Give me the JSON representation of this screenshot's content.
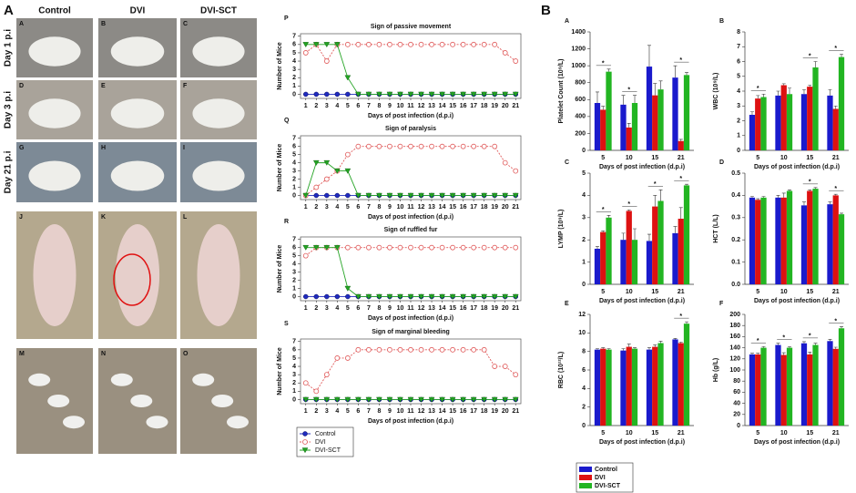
{
  "photo_panel": {
    "panel_label": "A",
    "columns": [
      "Control",
      "DVI",
      "DVI-SCT"
    ],
    "rows": [
      "Day 1 p.i",
      "Day 3 p.i",
      "Day 21 p.i"
    ],
    "letters": [
      "A",
      "B",
      "C",
      "D",
      "E",
      "F",
      "G",
      "H",
      "I",
      "J",
      "K",
      "L",
      "M",
      "N",
      "O"
    ]
  },
  "chart_data": [
    {
      "type": "line",
      "panel_label": "P",
      "title": "Sign of passive movement",
      "xlabel": "Days of post infection (d.p.i)",
      "ylabel": "Number of Mice",
      "x": [
        1,
        2,
        3,
        4,
        5,
        6,
        7,
        8,
        9,
        10,
        11,
        12,
        13,
        14,
        15,
        16,
        17,
        18,
        19,
        20,
        21
      ],
      "xlim": [
        0.5,
        21.5
      ],
      "xticks": [
        1,
        2,
        3,
        4,
        5,
        6,
        7,
        8,
        9,
        10,
        11,
        12,
        13,
        14,
        15,
        16,
        17,
        18,
        19,
        20,
        21
      ],
      "ylim": [
        -0.5,
        7.3
      ],
      "yticks": [
        0,
        1,
        2,
        3,
        4,
        5,
        6,
        7
      ],
      "series": [
        {
          "name": "Control",
          "color": "#1f2bbf",
          "marker": "circle",
          "dashed": false,
          "values": [
            0,
            0,
            0,
            0,
            0,
            0,
            0,
            0,
            0,
            0,
            0,
            0,
            0,
            0,
            0,
            0,
            0,
            0,
            0,
            0,
            0
          ]
        },
        {
          "name": "DVI",
          "color": "#e05a5a",
          "marker": "open-circle",
          "dashed": true,
          "values": [
            5,
            6,
            4,
            6,
            6,
            6,
            6,
            6,
            6,
            6,
            6,
            6,
            6,
            6,
            6,
            6,
            6,
            6,
            6,
            5,
            4
          ]
        },
        {
          "name": "DVI-SCT",
          "color": "#23a323",
          "marker": "triangle",
          "dashed": false,
          "values": [
            6,
            6,
            6,
            6,
            2,
            0,
            0,
            0,
            0,
            0,
            0,
            0,
            0,
            0,
            0,
            0,
            0,
            0,
            0,
            0,
            0
          ]
        }
      ]
    },
    {
      "type": "line",
      "panel_label": "Q",
      "title": "Sign of paralysis",
      "xlabel": "Days of post infection (d.p.i)",
      "ylabel": "Number of Mice",
      "x": [
        1,
        2,
        3,
        4,
        5,
        6,
        7,
        8,
        9,
        10,
        11,
        12,
        13,
        14,
        15,
        16,
        17,
        18,
        19,
        20,
        21
      ],
      "xlim": [
        0.5,
        21.5
      ],
      "xticks": [
        1,
        2,
        3,
        4,
        5,
        6,
        7,
        8,
        9,
        10,
        11,
        12,
        13,
        14,
        15,
        16,
        17,
        18,
        19,
        20,
        21
      ],
      "ylim": [
        -0.5,
        7.3
      ],
      "yticks": [
        0,
        1,
        2,
        3,
        4,
        5,
        6,
        7
      ],
      "series": [
        {
          "name": "Control",
          "color": "#1f2bbf",
          "marker": "circle",
          "dashed": false,
          "values": [
            0,
            0,
            0,
            0,
            0,
            0,
            0,
            0,
            0,
            0,
            0,
            0,
            0,
            0,
            0,
            0,
            0,
            0,
            0,
            0,
            0
          ]
        },
        {
          "name": "DVI",
          "color": "#e05a5a",
          "marker": "open-circle",
          "dashed": true,
          "values": [
            0,
            1,
            2,
            3,
            5,
            6,
            6,
            6,
            6,
            6,
            6,
            6,
            6,
            6,
            6,
            6,
            6,
            6,
            6,
            4,
            3
          ]
        },
        {
          "name": "DVI-SCT",
          "color": "#23a323",
          "marker": "triangle",
          "dashed": false,
          "values": [
            0,
            4,
            4,
            3,
            3,
            0,
            0,
            0,
            0,
            0,
            0,
            0,
            0,
            0,
            0,
            0,
            0,
            0,
            0,
            0,
            0
          ]
        }
      ]
    },
    {
      "type": "line",
      "panel_label": "R",
      "title": "Sign of ruffled fur",
      "xlabel": "Days of post infection (d.p.i)",
      "ylabel": "Number of Mice",
      "x": [
        1,
        2,
        3,
        4,
        5,
        6,
        7,
        8,
        9,
        10,
        11,
        12,
        13,
        14,
        15,
        16,
        17,
        18,
        19,
        20,
        21
      ],
      "xlim": [
        0.5,
        21.5
      ],
      "xticks": [
        1,
        2,
        3,
        4,
        5,
        6,
        7,
        8,
        9,
        10,
        11,
        12,
        13,
        14,
        15,
        16,
        17,
        18,
        19,
        20,
        21
      ],
      "ylim": [
        -0.5,
        7.3
      ],
      "yticks": [
        0,
        1,
        2,
        3,
        4,
        5,
        6,
        7
      ],
      "series": [
        {
          "name": "Control",
          "color": "#1f2bbf",
          "marker": "circle",
          "dashed": false,
          "values": [
            0,
            0,
            0,
            0,
            0,
            0,
            0,
            0,
            0,
            0,
            0,
            0,
            0,
            0,
            0,
            0,
            0,
            0,
            0,
            0,
            0
          ]
        },
        {
          "name": "DVI",
          "color": "#e05a5a",
          "marker": "open-circle",
          "dashed": true,
          "values": [
            5,
            6,
            6,
            6,
            6,
            6,
            6,
            6,
            6,
            6,
            6,
            6,
            6,
            6,
            6,
            6,
            6,
            6,
            6,
            6,
            6
          ]
        },
        {
          "name": "DVI-SCT",
          "color": "#23a323",
          "marker": "triangle",
          "dashed": false,
          "values": [
            6,
            6,
            6,
            6,
            1,
            0,
            0,
            0,
            0,
            0,
            0,
            0,
            0,
            0,
            0,
            0,
            0,
            0,
            0,
            0,
            0
          ]
        }
      ]
    },
    {
      "type": "line",
      "panel_label": "S",
      "title": "Sign of marginal bleeding",
      "xlabel": "Days of post infection (d.p.i)",
      "ylabel": "Number of Mice",
      "legend": "below",
      "x": [
        1,
        2,
        3,
        4,
        5,
        6,
        7,
        8,
        9,
        10,
        11,
        12,
        13,
        14,
        15,
        16,
        17,
        18,
        19,
        20,
        21
      ],
      "xlim": [
        0.5,
        21.5
      ],
      "xticks": [
        1,
        2,
        3,
        4,
        5,
        6,
        7,
        8,
        9,
        10,
        11,
        12,
        13,
        14,
        15,
        16,
        17,
        18,
        19,
        20,
        21
      ],
      "ylim": [
        -0.5,
        7.3
      ],
      "yticks": [
        0,
        1,
        2,
        3,
        4,
        5,
        6,
        7
      ],
      "series": [
        {
          "name": "Control",
          "color": "#1f2bbf",
          "marker": "circle",
          "dashed": false,
          "values": [
            0,
            0,
            0,
            0,
            0,
            0,
            0,
            0,
            0,
            0,
            0,
            0,
            0,
            0,
            0,
            0,
            0,
            0,
            0,
            0,
            0
          ]
        },
        {
          "name": "DVI",
          "color": "#e05a5a",
          "marker": "open-circle",
          "dashed": true,
          "values": [
            2,
            1,
            3,
            5,
            5,
            6,
            6,
            6,
            6,
            6,
            6,
            6,
            6,
            6,
            6,
            6,
            6,
            6,
            4,
            4,
            3
          ]
        },
        {
          "name": "DVI-SCT",
          "color": "#23a323",
          "marker": "triangle",
          "dashed": false,
          "values": [
            0,
            0,
            0,
            0,
            0,
            0,
            0,
            0,
            0,
            0,
            0,
            0,
            0,
            0,
            0,
            0,
            0,
            0,
            0,
            0,
            0
          ]
        }
      ]
    },
    {
      "type": "bar",
      "figure_label": "B",
      "panel_label": "A",
      "xlabel": "Days of post infection (d.p.i)",
      "ylabel": "Platelet Count (10⁹/L)",
      "categories": [
        "5",
        "10",
        "15",
        "21"
      ],
      "ylim": [
        0,
        1400
      ],
      "yticks": [
        0,
        200,
        400,
        600,
        800,
        1000,
        1200,
        1400
      ],
      "annotations": [
        {
          "text": "*",
          "category": "5"
        },
        {
          "text": "*",
          "category": "10"
        },
        {
          "text": "*",
          "category": "21"
        }
      ],
      "series": [
        {
          "name": "Control",
          "color": "#1a1acc",
          "values": [
            560,
            540,
            990,
            860
          ],
          "errors": [
            130,
            110,
            250,
            140
          ]
        },
        {
          "name": "DVI",
          "color": "#dd1111",
          "values": [
            480,
            270,
            650,
            110
          ],
          "errors": [
            40,
            50,
            140,
            20
          ]
        },
        {
          "name": "DVI-SCT",
          "color": "#22b522",
          "values": [
            930,
            560,
            720,
            890
          ],
          "errors": [
            30,
            90,
            100,
            30
          ]
        }
      ]
    },
    {
      "type": "bar",
      "panel_label": "B",
      "xlabel": "Days of post infection (d.p.i)",
      "ylabel": "WBC (10⁹/L)",
      "categories": [
        "5",
        "10",
        "15",
        "21"
      ],
      "ylim": [
        0,
        8
      ],
      "yticks": [
        0,
        1,
        2,
        3,
        4,
        5,
        6,
        7,
        8
      ],
      "annotations": [
        {
          "text": "*",
          "category": "5"
        },
        {
          "text": "*",
          "category": "15"
        },
        {
          "text": "*",
          "category": "21"
        }
      ],
      "series": [
        {
          "name": "Control",
          "color": "#1a1acc",
          "values": [
            2.4,
            3.7,
            3.8,
            3.7
          ],
          "errors": [
            0.2,
            0.3,
            0.3,
            0.4
          ]
        },
        {
          "name": "DVI",
          "color": "#dd1111",
          "values": [
            3.5,
            4.4,
            4.3,
            2.8
          ],
          "errors": [
            0.2,
            0.1,
            0.1,
            0.2
          ]
        },
        {
          "name": "DVI-SCT",
          "color": "#22b522",
          "values": [
            3.6,
            3.8,
            5.6,
            6.3
          ],
          "errors": [
            0.2,
            0.4,
            0.4,
            0.2
          ]
        }
      ]
    },
    {
      "type": "bar",
      "panel_label": "C",
      "xlabel": "Days of post infection (d.p.i)",
      "ylabel": "LYMP (10⁹/L)",
      "categories": [
        "5",
        "10",
        "15",
        "21"
      ],
      "ylim": [
        0,
        5
      ],
      "yticks": [
        0,
        1,
        2,
        3,
        4,
        5
      ],
      "annotations": [
        {
          "text": "*",
          "category": "5"
        },
        {
          "text": "*",
          "category": "10"
        },
        {
          "text": "*",
          "category": "15"
        },
        {
          "text": "*",
          "category": "21"
        }
      ],
      "series": [
        {
          "name": "Control",
          "color": "#1a1acc",
          "values": [
            1.6,
            2.0,
            1.95,
            2.3
          ],
          "errors": [
            0.1,
            0.3,
            0.3,
            0.3
          ]
        },
        {
          "name": "DVI",
          "color": "#dd1111",
          "values": [
            2.35,
            3.3,
            3.5,
            2.95
          ],
          "errors": [
            0.05,
            0.05,
            0.5,
            0.5
          ]
        },
        {
          "name": "DVI-SCT",
          "color": "#22b522",
          "values": [
            3.0,
            2.0,
            3.75,
            4.45
          ],
          "errors": [
            0.1,
            0.5,
            0.5,
            0.05
          ]
        }
      ]
    },
    {
      "type": "bar",
      "panel_label": "D",
      "xlabel": "Days of post infection (d.p.i)",
      "ylabel": "HCT (L/L)",
      "categories": [
        "5",
        "10",
        "15",
        "21"
      ],
      "ylim": [
        0,
        0.5
      ],
      "yticks": [
        {
          "value": 0,
          "label": "0.0"
        },
        0.1,
        0.2,
        0.3,
        0.4,
        0.5
      ],
      "annotations": [
        {
          "text": "*",
          "category": "15"
        },
        {
          "text": "*",
          "category": "21"
        }
      ],
      "series": [
        {
          "name": "Control",
          "color": "#1a1acc",
          "values": [
            0.39,
            0.39,
            0.355,
            0.36
          ],
          "errors": [
            0.005,
            0.01,
            0.015,
            0.01
          ]
        },
        {
          "name": "DVI",
          "color": "#dd1111",
          "values": [
            0.38,
            0.39,
            0.42,
            0.4
          ],
          "errors": [
            0.005,
            0.02,
            0.005,
            0.005
          ]
        },
        {
          "name": "DVI-SCT",
          "color": "#22b522",
          "values": [
            0.39,
            0.42,
            0.43,
            0.315
          ],
          "errors": [
            0.005,
            0.005,
            0.005,
            0.005
          ]
        }
      ]
    },
    {
      "type": "bar",
      "panel_label": "E",
      "xlabel": "Days of post infection (d.p.i)",
      "ylabel": "RBC (10¹²/L)",
      "legend": "below",
      "categories": [
        "5",
        "10",
        "15",
        "21"
      ],
      "ylim": [
        0,
        12
      ],
      "yticks": [
        0,
        2,
        4,
        6,
        8,
        10,
        12
      ],
      "annotations": [
        {
          "text": "*",
          "category": "21"
        }
      ],
      "series": [
        {
          "name": "Control",
          "color": "#1a1acc",
          "values": [
            8.2,
            8.1,
            8.2,
            9.3
          ],
          "errors": [
            0.1,
            0.2,
            0.2,
            0.1
          ]
        },
        {
          "name": "DVI",
          "color": "#dd1111",
          "values": [
            8.3,
            8.5,
            8.5,
            8.9
          ],
          "errors": [
            0.1,
            0.3,
            0.2,
            0.1
          ]
        },
        {
          "name": "DVI-SCT",
          "color": "#22b522",
          "values": [
            8.2,
            8.3,
            8.9,
            11.0
          ],
          "errors": [
            0.1,
            0.1,
            0.2,
            0.2
          ]
        }
      ]
    },
    {
      "type": "bar",
      "panel_label": "F",
      "xlabel": "Days of post infection (d.p.i)",
      "ylabel": "Hb (g/L)",
      "categories": [
        "5",
        "10",
        "15",
        "21"
      ],
      "ylim": [
        0,
        200
      ],
      "yticks": [
        0,
        20,
        40,
        60,
        80,
        100,
        120,
        140,
        160,
        180,
        200
      ],
      "annotations": [
        {
          "text": "*",
          "category": "5"
        },
        {
          "text": "*",
          "category": "10"
        },
        {
          "text": "*",
          "category": "15"
        },
        {
          "text": "*",
          "category": "21"
        }
      ],
      "series": [
        {
          "name": "Control",
          "color": "#1a1acc",
          "values": [
            128,
            145,
            148,
            152
          ],
          "errors": [
            2,
            3,
            3,
            3
          ]
        },
        {
          "name": "DVI",
          "color": "#dd1111",
          "values": [
            128,
            127,
            128,
            138
          ],
          "errors": [
            2,
            4,
            4,
            3
          ]
        },
        {
          "name": "DVI-SCT",
          "color": "#22b522",
          "values": [
            140,
            140,
            145,
            175
          ],
          "errors": [
            2,
            2,
            3,
            3
          ]
        }
      ]
    }
  ]
}
